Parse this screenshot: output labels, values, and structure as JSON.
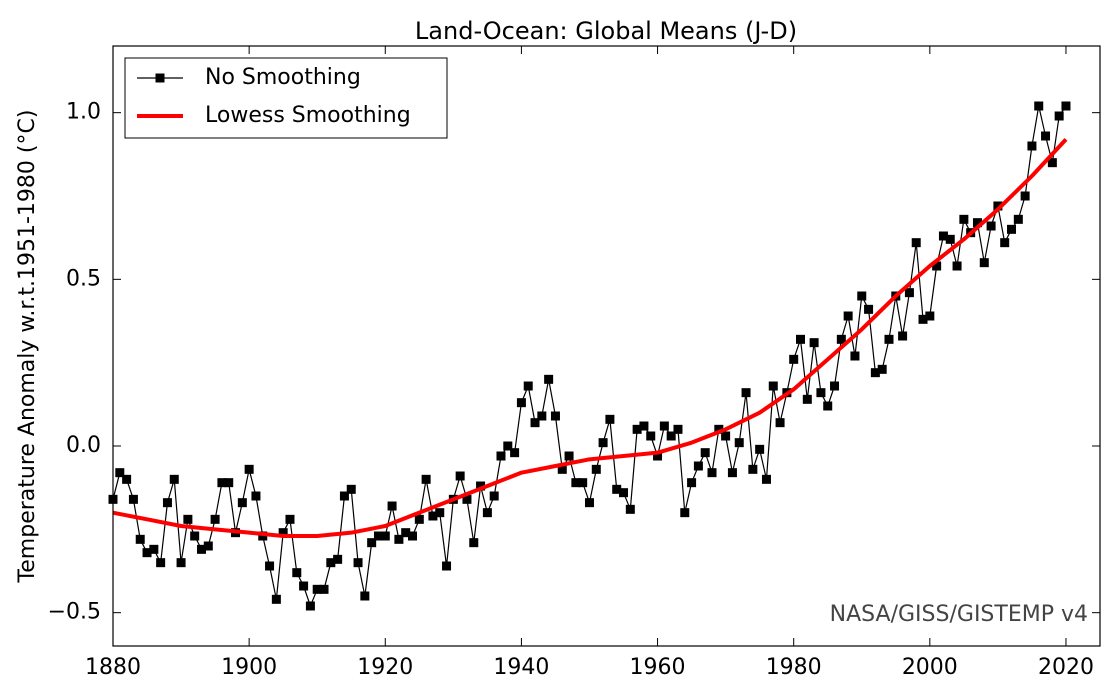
{
  "chart_data": {
    "type": "line",
    "title": "Land-Ocean: Global Means (J-D)",
    "y_label": "Temperature Anomaly w.r.t.1951-1980 (°C)",
    "annotation": "NASA/GISS/GISTEMP v4",
    "legend": "upper left",
    "xlim": [
      1880,
      2025
    ],
    "xticks": [
      1880,
      1900,
      1920,
      1940,
      1960,
      1980,
      2000,
      2020
    ],
    "ylim": [
      -0.6,
      1.2
    ],
    "yticks": [
      {
        "value": -0.5,
        "label": "−0.5"
      },
      {
        "value": 0,
        "label": "0.0"
      },
      0.5,
      {
        "value": 1,
        "label": "1.0"
      }
    ],
    "x": [
      1880,
      1881,
      1882,
      1883,
      1884,
      1885,
      1886,
      1887,
      1888,
      1889,
      1890,
      1891,
      1892,
      1893,
      1894,
      1895,
      1896,
      1897,
      1898,
      1899,
      1900,
      1901,
      1902,
      1903,
      1904,
      1905,
      1906,
      1907,
      1908,
      1909,
      1910,
      1911,
      1912,
      1913,
      1914,
      1915,
      1916,
      1917,
      1918,
      1919,
      1920,
      1921,
      1922,
      1923,
      1924,
      1925,
      1926,
      1927,
      1928,
      1929,
      1930,
      1931,
      1932,
      1933,
      1934,
      1935,
      1936,
      1937,
      1938,
      1939,
      1940,
      1941,
      1942,
      1943,
      1944,
      1945,
      1946,
      1947,
      1948,
      1949,
      1950,
      1951,
      1952,
      1953,
      1954,
      1955,
      1956,
      1957,
      1958,
      1959,
      1960,
      1961,
      1962,
      1963,
      1964,
      1965,
      1966,
      1967,
      1968,
      1969,
      1970,
      1971,
      1972,
      1973,
      1974,
      1975,
      1976,
      1977,
      1978,
      1979,
      1980,
      1981,
      1982,
      1983,
      1984,
      1985,
      1986,
      1987,
      1988,
      1989,
      1990,
      1991,
      1992,
      1993,
      1994,
      1995,
      1996,
      1997,
      1998,
      1999,
      2000,
      2001,
      2002,
      2003,
      2004,
      2005,
      2006,
      2007,
      2008,
      2009,
      2010,
      2011,
      2012,
      2013,
      2014,
      2015,
      2016,
      2017,
      2018,
      2019,
      2020
    ],
    "series": [
      {
        "name": "No Smoothing",
        "color": "#000000",
        "marker": "square",
        "values": [
          -0.16,
          -0.08,
          -0.1,
          -0.16,
          -0.28,
          -0.32,
          -0.31,
          -0.35,
          -0.17,
          -0.1,
          -0.35,
          -0.22,
          -0.27,
          -0.31,
          -0.3,
          -0.22,
          -0.11,
          -0.11,
          -0.26,
          -0.17,
          -0.07,
          -0.15,
          -0.27,
          -0.36,
          -0.46,
          -0.26,
          -0.22,
          -0.38,
          -0.42,
          -0.48,
          -0.43,
          -0.43,
          -0.35,
          -0.34,
          -0.15,
          -0.13,
          -0.35,
          -0.45,
          -0.29,
          -0.27,
          -0.27,
          -0.18,
          -0.28,
          -0.26,
          -0.27,
          -0.22,
          -0.1,
          -0.21,
          -0.2,
          -0.36,
          -0.16,
          -0.09,
          -0.16,
          -0.29,
          -0.12,
          -0.2,
          -0.15,
          -0.03,
          0.0,
          -0.02,
          0.13,
          0.18,
          0.07,
          0.09,
          0.2,
          0.09,
          -0.07,
          -0.03,
          -0.11,
          -0.11,
          -0.17,
          -0.07,
          0.01,
          0.08,
          -0.13,
          -0.14,
          -0.19,
          0.05,
          0.06,
          0.03,
          -0.03,
          0.06,
          0.03,
          0.05,
          -0.2,
          -0.11,
          -0.06,
          -0.02,
          -0.08,
          0.05,
          0.03,
          -0.08,
          0.01,
          0.16,
          -0.07,
          -0.01,
          -0.1,
          0.18,
          0.07,
          0.16,
          0.26,
          0.32,
          0.14,
          0.31,
          0.16,
          0.12,
          0.18,
          0.32,
          0.39,
          0.27,
          0.45,
          0.41,
          0.22,
          0.23,
          0.32,
          0.45,
          0.33,
          0.46,
          0.61,
          0.38,
          0.39,
          0.54,
          0.63,
          0.62,
          0.54,
          0.68,
          0.64,
          0.67,
          0.55,
          0.66,
          0.72,
          0.61,
          0.65,
          0.68,
          0.75,
          0.9,
          1.02,
          0.93,
          0.85,
          0.99,
          1.02
        ]
      },
      {
        "name": "Lowess Smoothing",
        "color": "#ff0000",
        "x": [
          1880,
          1885,
          1890,
          1895,
          1900,
          1905,
          1910,
          1915,
          1920,
          1925,
          1930,
          1935,
          1940,
          1945,
          1950,
          1955,
          1960,
          1965,
          1970,
          1975,
          1980,
          1985,
          1990,
          1995,
          2000,
          2005,
          2010,
          2015,
          2020
        ],
        "values": [
          -0.2,
          -0.22,
          -0.24,
          -0.25,
          -0.26,
          -0.27,
          -0.27,
          -0.26,
          -0.24,
          -0.2,
          -0.16,
          -0.12,
          -0.08,
          -0.06,
          -0.04,
          -0.03,
          -0.02,
          0.01,
          0.05,
          0.1,
          0.17,
          0.26,
          0.35,
          0.45,
          0.54,
          0.62,
          0.71,
          0.81,
          0.92
        ]
      }
    ]
  }
}
